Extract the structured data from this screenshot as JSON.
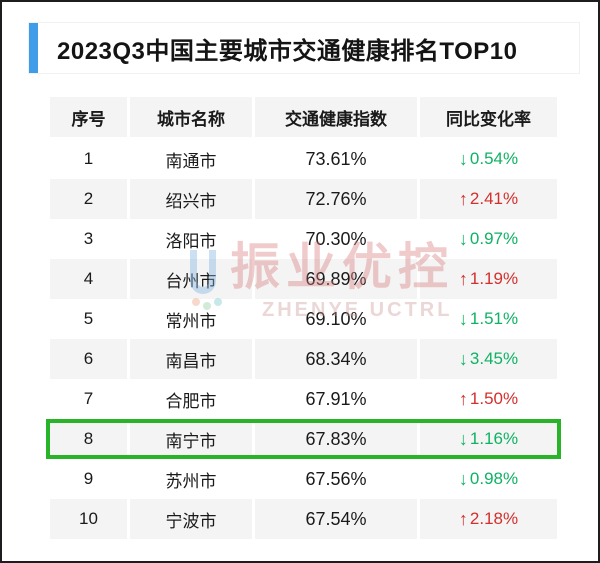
{
  "title": {
    "text": "2023Q3中国主要城市交通健康排名TOP10",
    "accent_color": "#3e9ce9"
  },
  "icons": {
    "up": "↑",
    "down": "↓"
  },
  "colors": {
    "up": "#d2302c",
    "down": "#0fb264",
    "highlight_border": "#28b328",
    "alt_row_bg": "#f4f4f5",
    "accent_blue": "#3e9ce9"
  },
  "table": {
    "headers": [
      "序号",
      "城市名称",
      "交通健康指数",
      "同比变化率"
    ],
    "highlighted_rank": "8",
    "rows": [
      {
        "rank": "1",
        "city": "南通市",
        "index": "73.61%",
        "direction": "down",
        "change": "0.54%"
      },
      {
        "rank": "2",
        "city": "绍兴市",
        "index": "72.76%",
        "direction": "up",
        "change": "2.41%"
      },
      {
        "rank": "3",
        "city": "洛阳市",
        "index": "70.30%",
        "direction": "down",
        "change": "0.97%"
      },
      {
        "rank": "4",
        "city": "台州市",
        "index": "69.89%",
        "direction": "up",
        "change": "1.19%"
      },
      {
        "rank": "5",
        "city": "常州市",
        "index": "69.10%",
        "direction": "down",
        "change": "1.51%"
      },
      {
        "rank": "6",
        "city": "南昌市",
        "index": "68.34%",
        "direction": "down",
        "change": "3.45%"
      },
      {
        "rank": "7",
        "city": "合肥市",
        "index": "67.91%",
        "direction": "up",
        "change": "1.50%"
      },
      {
        "rank": "8",
        "city": "南宁市",
        "index": "67.83%",
        "direction": "down",
        "change": "1.16%"
      },
      {
        "rank": "9",
        "city": "苏州市",
        "index": "67.56%",
        "direction": "down",
        "change": "0.98%"
      },
      {
        "rank": "10",
        "city": "宁波市",
        "index": "67.54%",
        "direction": "up",
        "change": "2.18%"
      }
    ]
  },
  "watermark": {
    "cn": "振业优控",
    "en": "ZHENYE UCTRL"
  },
  "chart_data": {
    "type": "table",
    "title": "2023Q3中国主要城市交通健康排名TOP10",
    "columns": [
      "序号",
      "城市名称",
      "交通健康指数",
      "同比变化率"
    ],
    "rows": [
      [
        1,
        "南通市",
        "73.61%",
        "-0.54%"
      ],
      [
        2,
        "绍兴市",
        "72.76%",
        "+2.41%"
      ],
      [
        3,
        "洛阳市",
        "70.30%",
        "-0.97%"
      ],
      [
        4,
        "台州市",
        "69.89%",
        "+1.19%"
      ],
      [
        5,
        "常州市",
        "69.10%",
        "-1.51%"
      ],
      [
        6,
        "南昌市",
        "68.34%",
        "-3.45%"
      ],
      [
        7,
        "合肥市",
        "67.91%",
        "+1.50%"
      ],
      [
        8,
        "南宁市",
        "67.83%",
        "-1.16%"
      ],
      [
        9,
        "苏州市",
        "67.56%",
        "-0.98%"
      ],
      [
        10,
        "宁波市",
        "67.54%",
        "+2.18%"
      ]
    ],
    "highlighted_row": 8,
    "legend_position": "none",
    "grid": false
  }
}
